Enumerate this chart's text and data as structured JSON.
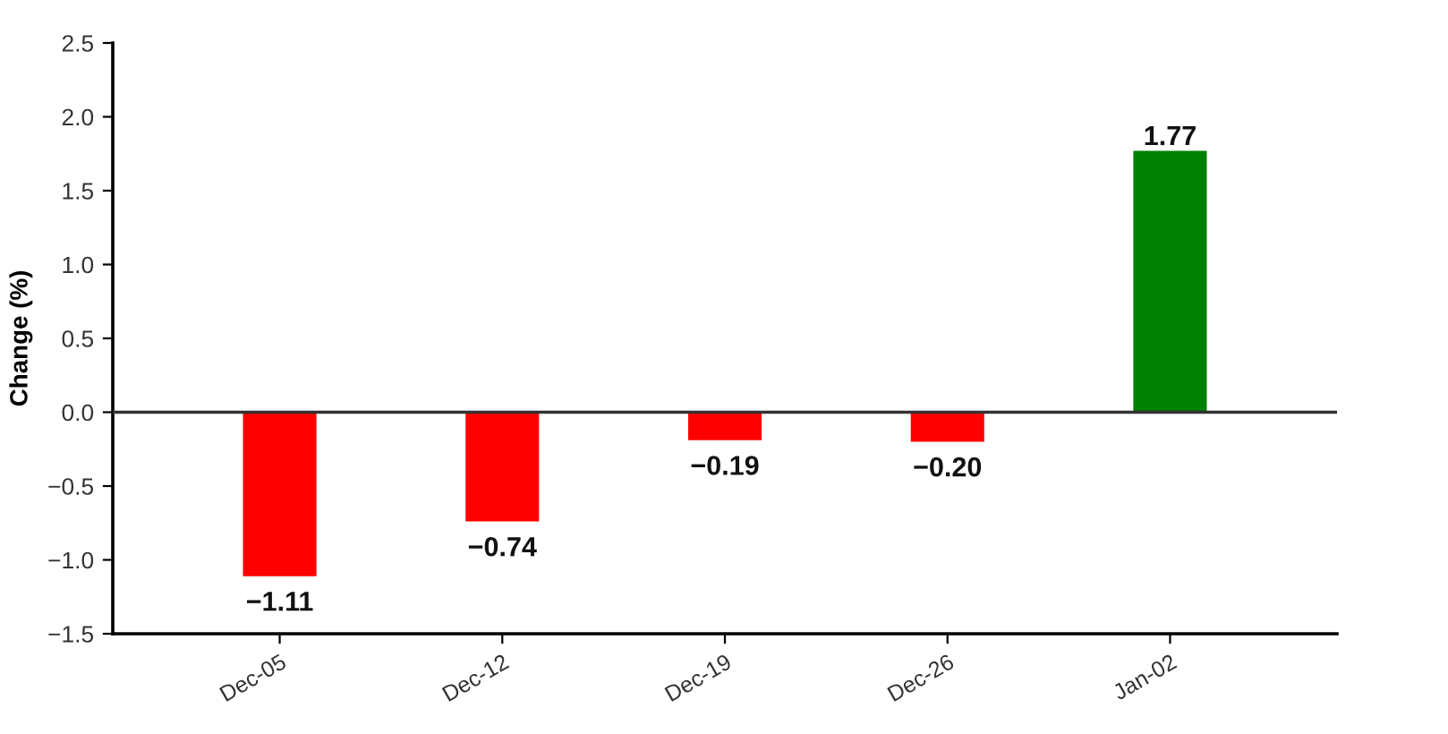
{
  "chart_data": {
    "type": "bar",
    "ylabel": "Change (%)",
    "categories": [
      "Dec-05",
      "Dec-12",
      "Dec-19",
      "Dec-26",
      "Jan-02"
    ],
    "values": [
      -1.11,
      -0.74,
      -0.19,
      -0.2,
      1.77
    ],
    "colors": [
      "#ff0000",
      "#ff0000",
      "#ff0000",
      "#ff0000",
      "#008000"
    ],
    "value_labels": [
      "−1.11",
      "−0.74",
      "−0.19",
      "−0.20",
      "1.77"
    ],
    "ylim": [
      -1.5,
      2.5
    ],
    "yticks": [
      {
        "value": -1.5,
        "label": "−1.5"
      },
      {
        "value": -1.0,
        "label": "−1.0"
      },
      {
        "value": -0.5,
        "label": "−0.5"
      },
      {
        "value": 0,
        "label": "0.0"
      },
      {
        "value": 0.5,
        "label": "0.5"
      },
      {
        "value": 1.0,
        "label": "1.0"
      },
      {
        "value": 1.5,
        "label": "1.5"
      },
      {
        "value": 2.0,
        "label": "2.0"
      },
      {
        "value": 2.5,
        "label": "2.5"
      }
    ],
    "ref_lines": [
      {
        "axis": "y",
        "value": 0,
        "color": "#333333"
      }
    ],
    "grid": false,
    "legend": false
  }
}
